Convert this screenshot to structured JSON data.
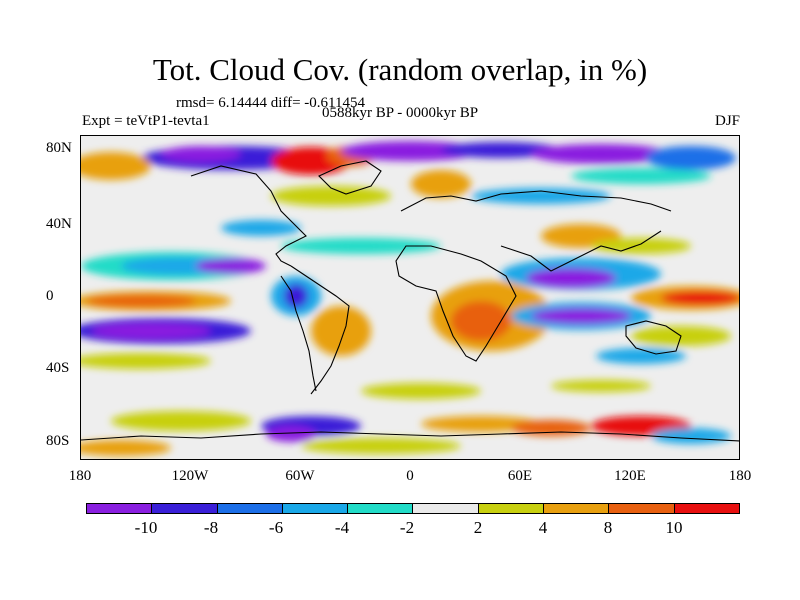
{
  "map": {
    "title": "Tot. Cloud Cov. (random overlap, in %)",
    "stats": "rmsd= 6.14444 diff= -0.611454",
    "period": "0588kyr BP - 0000kyr BP",
    "experiment": "Expt = teVtP1-tevta1",
    "season": "DJF",
    "lat_labels": [
      "80N",
      "40N",
      "0",
      "40S",
      "80S"
    ],
    "lon_labels": [
      "180",
      "120W",
      "60W",
      "0",
      "60E",
      "120E",
      "180"
    ]
  },
  "colorbar": {
    "labels": [
      "-10",
      "-8",
      "-6",
      "-4",
      "-2",
      "2",
      "4",
      "8",
      "10"
    ],
    "colors": [
      "#8a1fe0",
      "#3a1fd8",
      "#1c6fe8",
      "#1aa8e8",
      "#22dcc8",
      "#eaeaea",
      "#c8d010",
      "#e8a010",
      "#e86010",
      "#e81010"
    ]
  }
}
